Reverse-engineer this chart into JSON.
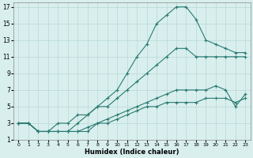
{
  "xlabel": "Humidex (Indice chaleur)",
  "line_color": "#2a7a72",
  "bg_color": "#d8efed",
  "grid_color": "#b8d8d5",
  "xlim": [
    -0.5,
    23.5
  ],
  "ylim": [
    1,
    17.5
  ],
  "xticks": [
    0,
    1,
    2,
    3,
    4,
    5,
    6,
    7,
    8,
    9,
    10,
    11,
    12,
    13,
    14,
    15,
    16,
    17,
    18,
    19,
    20,
    21,
    22,
    23
  ],
  "yticks": [
    1,
    3,
    5,
    7,
    9,
    11,
    13,
    15,
    17
  ],
  "line1_x": [
    0,
    1,
    2,
    3,
    4,
    5,
    6,
    7,
    8,
    9,
    10,
    11,
    12,
    13,
    14,
    15,
    16,
    17,
    18,
    19,
    20,
    21,
    22,
    23
  ],
  "line1_y": [
    3,
    3,
    2,
    2,
    3,
    3,
    4,
    4,
    5,
    5,
    6,
    7,
    8,
    9,
    10,
    11,
    12,
    12,
    11,
    11,
    11,
    11,
    11,
    11
  ],
  "line2_x": [
    0,
    1,
    2,
    3,
    4,
    5,
    6,
    7,
    8,
    9,
    10,
    11,
    12,
    13,
    14,
    15,
    16,
    17,
    18,
    19,
    20,
    21,
    22,
    23
  ],
  "line2_y": [
    3,
    3,
    2,
    2,
    2,
    2,
    3,
    4,
    5,
    6,
    7,
    9,
    11,
    12.5,
    15,
    16,
    17,
    17,
    15.5,
    13,
    12.5,
    12,
    11.5,
    11.5
  ],
  "line3_x": [
    0,
    1,
    2,
    3,
    4,
    5,
    6,
    7,
    8,
    9,
    10,
    11,
    12,
    13,
    14,
    15,
    16,
    17,
    18,
    19,
    20,
    21,
    22,
    23
  ],
  "line3_y": [
    3,
    3,
    2,
    2,
    2,
    2,
    2,
    2.5,
    3,
    3.5,
    4,
    4.5,
    5,
    5.5,
    6,
    6.5,
    7,
    7,
    7,
    7,
    7.5,
    7,
    5,
    6.5
  ],
  "line4_x": [
    0,
    1,
    2,
    3,
    4,
    5,
    6,
    7,
    8,
    9,
    10,
    11,
    12,
    13,
    14,
    15,
    16,
    17,
    18,
    19,
    20,
    21,
    22,
    23
  ],
  "line4_y": [
    3,
    3,
    2,
    2,
    2,
    2,
    2,
    2,
    3,
    3,
    3.5,
    4,
    4.5,
    5,
    5,
    5.5,
    5.5,
    5.5,
    5.5,
    6,
    6,
    6,
    5.5,
    6
  ]
}
